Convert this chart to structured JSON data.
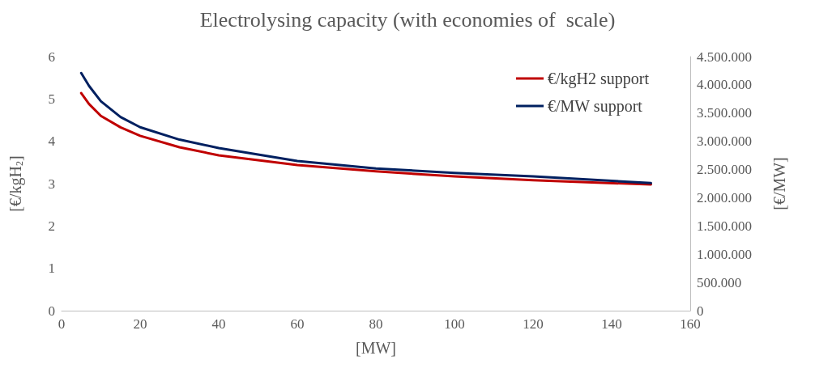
{
  "chart_data": {
    "type": "line",
    "title": "Electrolysing capacity (with economies of  scale)",
    "xlabel": "[MW]",
    "ylabel": "[€/kgH$_{2}$]",
    "y2label": "[€/MW]",
    "x": [
      5,
      7,
      10,
      15,
      20,
      30,
      40,
      60,
      80,
      100,
      120,
      150
    ],
    "series": [
      {
        "name": "€/kgH2 support",
        "color": "#c00000",
        "values": [
          5.14,
          4.88,
          4.6,
          4.33,
          4.13,
          3.86,
          3.67,
          3.44,
          3.29,
          3.17,
          3.08,
          2.98
        ]
      },
      {
        "name": "€/MW support",
        "color": "#002060",
        "axis": "y2",
        "values": [
          4210000,
          3980000,
          3710000,
          3430000,
          3250000,
          3030000,
          2880000,
          2650000,
          2520000,
          2440000,
          2380000,
          2260000
        ]
      }
    ],
    "xlim": [
      0,
      160
    ],
    "xticks": [
      0,
      20,
      40,
      60,
      80,
      100,
      120,
      140,
      160
    ],
    "ylim": [
      0,
      6
    ],
    "yticks": [
      0,
      1,
      2,
      3,
      4,
      5,
      6
    ],
    "y2lim": [
      0,
      4500000
    ],
    "y2ticks": [
      0,
      {
        "value": 500000,
        "label": "500.000"
      },
      {
        "value": 1000000,
        "label": "1.000.000"
      },
      {
        "value": 1500000,
        "label": "1.500.000"
      },
      {
        "value": 2000000,
        "label": "2.000.000"
      },
      {
        "value": 2500000,
        "label": "2.500.000"
      },
      {
        "value": 3000000,
        "label": "3.000.000"
      },
      {
        "value": 3500000,
        "label": "3.500.000"
      },
      {
        "value": 4000000,
        "label": "4.000.000"
      },
      {
        "value": 4500000,
        "label": "4.500.000"
      }
    ],
    "grid": false,
    "legend": "top right",
    "marker": "none",
    "line_style": "solid"
  }
}
